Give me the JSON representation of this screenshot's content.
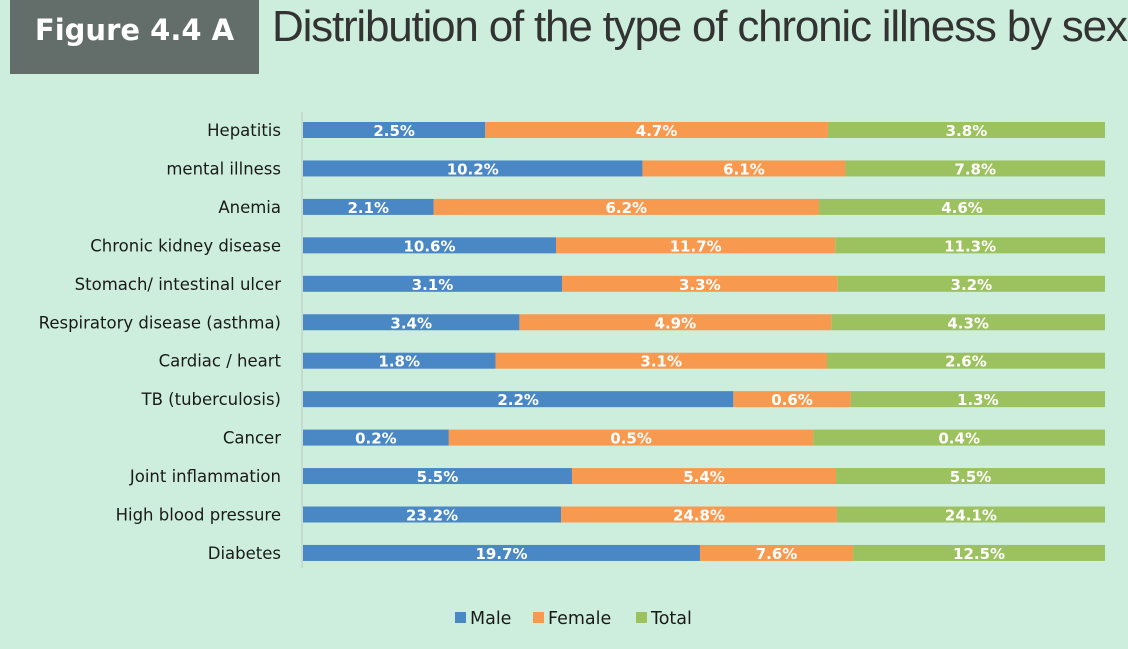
{
  "figure_label": "Figure 4.4 A",
  "chart_data": {
    "type": "bar",
    "orientation": "horizontal",
    "stacked": "percent",
    "title": "Distribution of the type of chronic illness by sex",
    "categories": [
      "Hepatitis",
      "mental illness",
      "Anemia",
      "Chronic kidney disease",
      "Stomach/ intestinal ulcer",
      "Respiratory disease (asthma)",
      "Cardiac / heart",
      "TB (tuberculosis)",
      "Cancer",
      "Joint inflammation",
      "High blood pressure",
      "Diabetes"
    ],
    "series": [
      {
        "name": "Male",
        "color": "#4a87c5",
        "values": [
          2.5,
          10.2,
          2.1,
          10.6,
          3.1,
          3.4,
          1.8,
          2.2,
          0.2,
          5.5,
          23.2,
          19.7
        ],
        "labels": [
          "2.5%",
          "10.2%",
          "2.1%",
          "10.6%",
          "3.1%",
          "3.4%",
          "1.8%",
          "2.2%",
          "0.2%",
          "5.5%",
          "23.2%",
          "19.7%"
        ]
      },
      {
        "name": "Female",
        "color": "#f79a4f",
        "values": [
          4.7,
          6.1,
          6.2,
          11.7,
          3.3,
          4.9,
          3.1,
          0.6,
          0.5,
          5.4,
          24.8,
          7.6
        ],
        "labels": [
          "4.7%",
          "6.1%",
          "6.2%",
          "11.7%",
          "3.3%",
          "4.9%",
          "3.1%",
          "0.6%",
          "0.5%",
          "5.4%",
          "24.8%",
          "7.6%"
        ]
      },
      {
        "name": "Total",
        "color": "#9bc25e",
        "values": [
          3.8,
          7.8,
          4.6,
          11.3,
          3.2,
          4.3,
          2.6,
          1.3,
          0.4,
          5.5,
          24.1,
          12.5
        ],
        "labels": [
          "3.8%",
          "7.8%",
          "4.6%",
          "11.3%",
          "3.2%",
          "4.3%",
          "2.6%",
          "1.3%",
          "0.4%",
          "5.5%",
          "24.1%",
          "12.5%"
        ]
      }
    ],
    "legend": "bottom",
    "grid": false
  }
}
